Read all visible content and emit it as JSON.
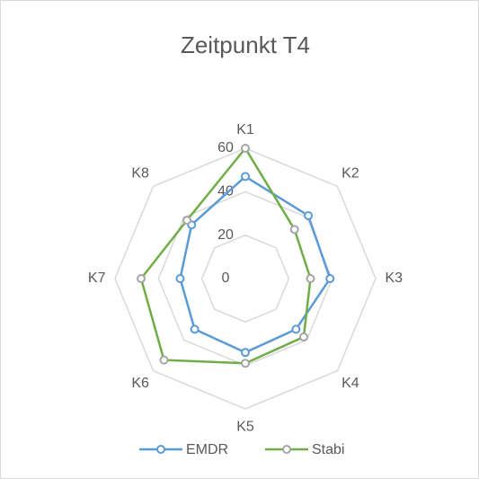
{
  "chart_data": {
    "type": "radar",
    "title": "Zeitpunkt T4",
    "categories": [
      "K1",
      "K2",
      "K3",
      "K4",
      "K5",
      "K6",
      "K7",
      "K8"
    ],
    "series": [
      {
        "name": "EMDR",
        "color": "#5b9bd5",
        "marker_color": "#5b9bd5",
        "values": [
          47,
          41,
          39,
          33,
          34,
          33,
          30,
          35
        ]
      },
      {
        "name": "Stabi",
        "color": "#70ad47",
        "marker_color": "#a5a5a5",
        "values": [
          60,
          32,
          30,
          38,
          39,
          53,
          48,
          38
        ]
      }
    ],
    "ylim": [
      0,
      60
    ],
    "yticks": [
      0,
      20,
      40,
      60
    ],
    "grid": true,
    "legend": "bottom"
  }
}
